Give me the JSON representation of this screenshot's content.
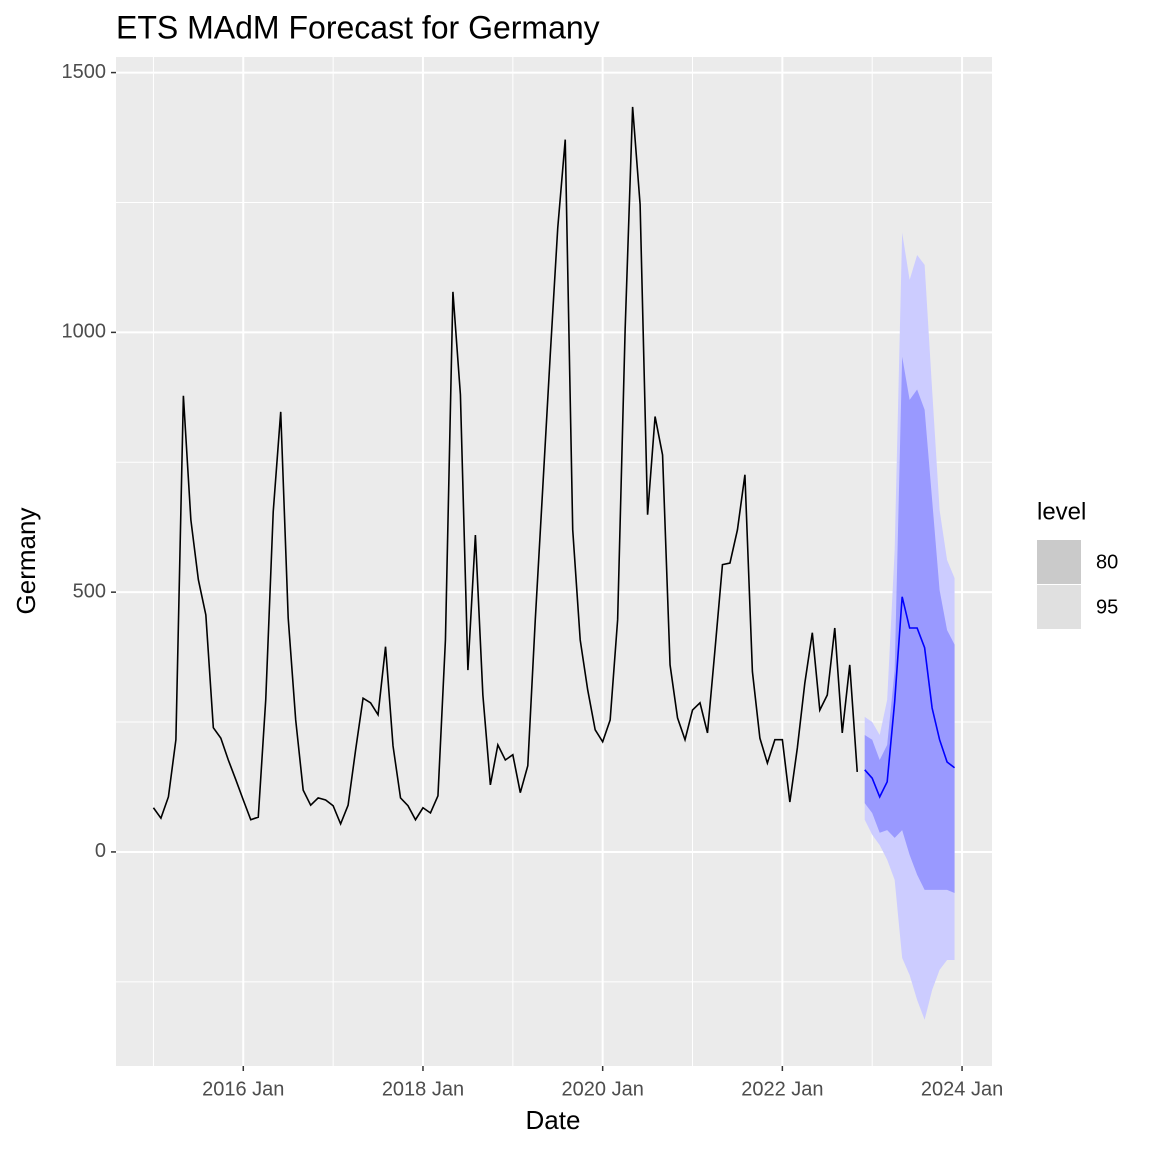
{
  "chart_data": {
    "type": "line",
    "title": "ETS MAdM Forecast for Germany",
    "x_label": "Date",
    "y_label": "Germany",
    "xlim": [
      "2014-08",
      "2024-05"
    ],
    "xticks": [
      {
        "value": "2016-01",
        "label": "2016 Jan"
      },
      {
        "value": "2018-01",
        "label": "2018 Jan"
      },
      {
        "value": "2020-01",
        "label": "2020 Jan"
      },
      {
        "value": "2022-01",
        "label": "2022 Jan"
      },
      {
        "value": "2024-01",
        "label": "2024 Jan"
      }
    ],
    "ylim": [
      -412,
      1530
    ],
    "yticks": [
      0,
      500,
      1000,
      1500
    ],
    "grid": true,
    "x": [
      "2015-01",
      "2015-02",
      "2015-03",
      "2015-04",
      "2015-05",
      "2015-06",
      "2015-07",
      "2015-08",
      "2015-09",
      "2015-10",
      "2015-11",
      "2015-12",
      "2016-01",
      "2016-02",
      "2016-03",
      "2016-04",
      "2016-05",
      "2016-06",
      "2016-07",
      "2016-08",
      "2016-09",
      "2016-10",
      "2016-11",
      "2016-12",
      "2017-01",
      "2017-02",
      "2017-03",
      "2017-04",
      "2017-05",
      "2017-06",
      "2017-07",
      "2017-08",
      "2017-09",
      "2017-10",
      "2017-11",
      "2017-12",
      "2018-01",
      "2018-02",
      "2018-03",
      "2018-04",
      "2018-05",
      "2018-06",
      "2018-07",
      "2018-08",
      "2018-09",
      "2018-10",
      "2018-11",
      "2018-12",
      "2019-01",
      "2019-02",
      "2019-03",
      "2019-04",
      "2019-05",
      "2019-06",
      "2019-07",
      "2019-08",
      "2019-09",
      "2019-10",
      "2019-11",
      "2019-12",
      "2020-01",
      "2020-02",
      "2020-03",
      "2020-04",
      "2020-05",
      "2020-06",
      "2020-07",
      "2020-08",
      "2020-09",
      "2020-10",
      "2020-11",
      "2020-12",
      "2021-01",
      "2021-02",
      "2021-03",
      "2021-04",
      "2021-05",
      "2021-06",
      "2021-07",
      "2021-08",
      "2021-09",
      "2021-10",
      "2021-11",
      "2021-12",
      "2022-01",
      "2022-02",
      "2022-03",
      "2022-04",
      "2022-05",
      "2022-06",
      "2022-07",
      "2022-08",
      "2022-09",
      "2022-10",
      "2022-11"
    ],
    "values": [
      85,
      65,
      106,
      216,
      878,
      639,
      524,
      456,
      239,
      219,
      177,
      139,
      100,
      62,
      67,
      293,
      655,
      847,
      450,
      254,
      119,
      90,
      104,
      100,
      89,
      54,
      90,
      196,
      296,
      287,
      264,
      395,
      204,
      104,
      89,
      62,
      85,
      75,
      108,
      408,
      1078,
      880,
      350,
      610,
      302,
      129,
      206,
      177,
      187,
      114,
      166,
      447,
      701,
      957,
      1201,
      1371,
      620,
      408,
      312,
      235,
      212,
      254,
      447,
      1005,
      1434,
      1246,
      649,
      838,
      764,
      360,
      258,
      216,
      273,
      287,
      229,
      389,
      553,
      556,
      620,
      726,
      347,
      219,
      171,
      216,
      216,
      96,
      200,
      325,
      422,
      273,
      302,
      431,
      229,
      360,
      154
    ],
    "color": "#000000",
    "forecast": {
      "x": [
        "2022-12",
        "2023-01",
        "2023-02",
        "2023-03",
        "2023-04",
        "2023-05",
        "2023-06",
        "2023-07",
        "2023-08",
        "2023-09",
        "2023-10",
        "2023-11",
        "2023-12"
      ],
      "mean": [
        158,
        142,
        106,
        135,
        289,
        491,
        431,
        431,
        393,
        277,
        216,
        173,
        162
      ],
      "color": "#0000ff",
      "legend_title": "level",
      "intervals": [
        {
          "name": "95",
          "color": "#ccccff",
          "key_color": "#e0e0e0",
          "lower": [
            62,
            33,
            13,
            -15,
            -54,
            -204,
            -237,
            -285,
            -323,
            -266,
            -227,
            -208,
            -208
          ],
          "upper": [
            260,
            250,
            225,
            293,
            581,
            1192,
            1101,
            1149,
            1130,
            890,
            658,
            562,
            527
          ]
        },
        {
          "name": "80",
          "color": "#9999ff",
          "key_color": "#cacaca",
          "lower": [
            94,
            75,
            37,
            42,
            27,
            42,
            -6,
            -44,
            -73,
            -73,
            -73,
            -73,
            -79
          ],
          "upper": [
            225,
            216,
            177,
            206,
            350,
            953,
            870,
            890,
            851,
            678,
            504,
            427,
            399
          ]
        }
      ]
    }
  }
}
